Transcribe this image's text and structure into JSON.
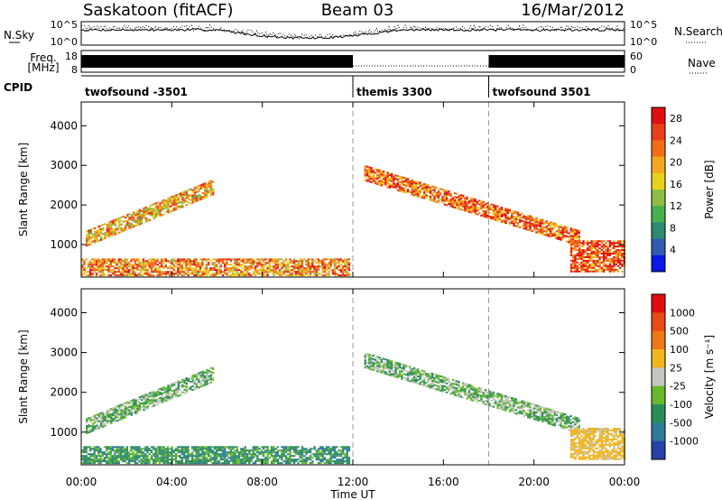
{
  "header": {
    "station": "Saskatoon (fitACF)",
    "beam": "Beam 03",
    "date": "16/Mar/2012"
  },
  "noise_panel": {
    "left_label": "N.Sky",
    "right_label": "N.Search",
    "left_ticks": [
      "10^5",
      "10^0"
    ],
    "right_ticks": [
      "10^5",
      "10^0"
    ]
  },
  "freq_panel": {
    "left_label_line1": "Freq.",
    "left_label_line2": "[MHz]",
    "right_label": "Nave",
    "left_ticks": [
      "18",
      "8"
    ],
    "right_ticks": [
      "60",
      "0"
    ]
  },
  "cpid": {
    "label": "CPID",
    "segments": [
      {
        "name": "twofsound -3501",
        "start_ut": 0
      },
      {
        "name": "themis 3300",
        "start_ut": 12
      },
      {
        "name": "twofsound 3501",
        "start_ut": 18
      }
    ]
  },
  "time_axis": {
    "label": "Time UT",
    "ticks": [
      "00:00",
      "04:00",
      "08:00",
      "12:00",
      "16:00",
      "20:00",
      "00:00"
    ]
  },
  "chart_data": [
    {
      "type": "heatmap",
      "title": "",
      "xlabel": "Time UT",
      "ylabel": "Slant Range [km]",
      "xlim": [
        0,
        24
      ],
      "ylim": [
        180,
        4600
      ],
      "y_ticks": [
        "1000",
        "2000",
        "3000",
        "4000"
      ],
      "colorbar": {
        "label": "Power [dB]",
        "ticks": [
          "4",
          "8",
          "12",
          "16",
          "20",
          "24",
          "28"
        ],
        "range": [
          0,
          30
        ],
        "colors": [
          "#0a17e8",
          "#2f5bb0",
          "#2e8a72",
          "#49b04d",
          "#8fbe44",
          "#e8d11c",
          "#f4a71e",
          "#f16e15",
          "#e9401a",
          "#e01010"
        ]
      },
      "echo_regions": [
        {
          "feature": "ground scatter",
          "t": [
            0.0,
            11.8
          ],
          "r": [
            200,
            650
          ],
          "value": 22
        },
        {
          "feature": "morning band",
          "t": [
            0.2,
            5.8
          ],
          "r_start": 1150,
          "r_end": 2450,
          "value": 20
        },
        {
          "feature": "evening band",
          "t": [
            12.5,
            22.0
          ],
          "r_start": 2800,
          "r_end": 1150,
          "value": 24
        },
        {
          "feature": "late night band",
          "t": [
            21.6,
            24.0
          ],
          "r": [
            300,
            1100
          ],
          "value": 26
        }
      ]
    },
    {
      "type": "heatmap",
      "title": "",
      "xlabel": "Time UT",
      "ylabel": "Slant Range [km]",
      "xlim": [
        0,
        24
      ],
      "ylim": [
        180,
        4600
      ],
      "y_ticks": [
        "1000",
        "2000",
        "3000",
        "4000"
      ],
      "colorbar": {
        "label": "Velocity [m s⁻¹]",
        "ticks": [
          "1000",
          "500",
          "100",
          "25",
          "-25",
          "-100",
          "-500",
          "-1000"
        ],
        "colors": [
          "#2741a8",
          "#2f7a9a",
          "#2b8e5a",
          "#68b92d",
          "#c6c6c0",
          "#f1b51d",
          "#ee7818",
          "#e84a16",
          "#e00e0e"
        ]
      },
      "echo_regions": [
        {
          "feature": "ground scatter",
          "t": [
            0.0,
            11.8
          ],
          "r": [
            200,
            650
          ],
          "value": 60
        },
        {
          "feature": "morning band",
          "t": [
            0.2,
            5.8
          ],
          "r_start": 1150,
          "r_end": 2450,
          "value": 0
        },
        {
          "feature": "evening band",
          "t": [
            12.5,
            22.0
          ],
          "r_start": 2800,
          "r_end": 1150,
          "value": 0
        },
        {
          "feature": "late night band",
          "t": [
            21.6,
            24.0
          ],
          "r": [
            300,
            1100
          ],
          "value": -150
        }
      ]
    }
  ]
}
